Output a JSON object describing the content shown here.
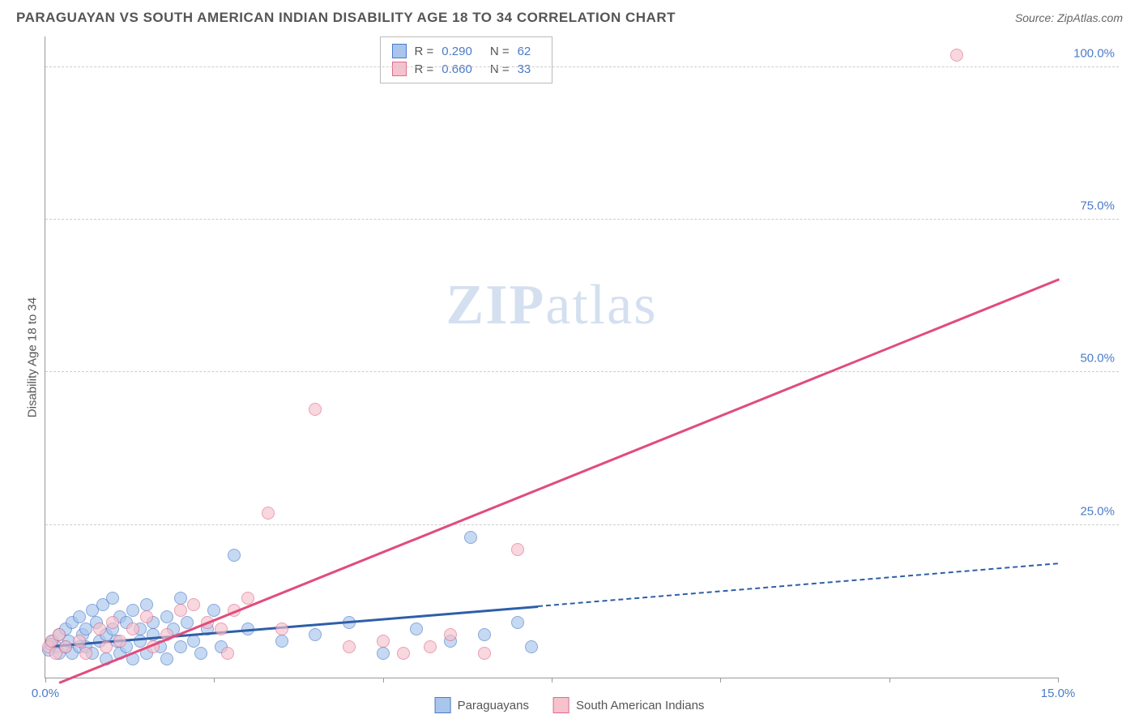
{
  "header": {
    "title": "PARAGUAYAN VS SOUTH AMERICAN INDIAN DISABILITY AGE 18 TO 34 CORRELATION CHART",
    "source_prefix": "Source: ",
    "source_name": "ZipAtlas.com"
  },
  "watermark": {
    "zip": "ZIP",
    "atlas": "atlas"
  },
  "chart": {
    "type": "scatter",
    "y_axis_label": "Disability Age 18 to 34",
    "xlim": [
      0,
      15
    ],
    "ylim": [
      0,
      105
    ],
    "x_ticks": [
      0,
      2.5,
      5,
      7.5,
      10,
      12.5,
      15
    ],
    "x_tick_labels": {
      "0": "0.0%",
      "15": "15.0%"
    },
    "y_ticks": [
      25,
      50,
      75,
      100
    ],
    "y_tick_labels": {
      "25": "25.0%",
      "50": "50.0%",
      "75": "75.0%",
      "100": "100.0%"
    },
    "grid_color": "#cccccc",
    "axis_color": "#999999",
    "tick_label_color": "#4a7bc8",
    "background_color": "#ffffff",
    "series": [
      {
        "name": "Paraguayans",
        "fill_color": "#a9c5ec",
        "border_color": "#4a7bc8",
        "trend_color": "#2e5fa8",
        "r_label": "R = ",
        "r_value": "0.290",
        "n_label": "N = ",
        "n_value": "62",
        "trend": {
          "x1": 0.1,
          "y1": 5.0,
          "x2": 7.3,
          "y2": 11.5,
          "dash_x2": 15.0,
          "dash_y2": 18.5
        },
        "points": [
          [
            0.1,
            6
          ],
          [
            0.15,
            5
          ],
          [
            0.2,
            7
          ],
          [
            0.2,
            4
          ],
          [
            0.3,
            8
          ],
          [
            0.3,
            5
          ],
          [
            0.35,
            6
          ],
          [
            0.4,
            9
          ],
          [
            0.4,
            4
          ],
          [
            0.5,
            10
          ],
          [
            0.5,
            5
          ],
          [
            0.55,
            7
          ],
          [
            0.6,
            8
          ],
          [
            0.6,
            5
          ],
          [
            0.7,
            11
          ],
          [
            0.7,
            4
          ],
          [
            0.75,
            9
          ],
          [
            0.8,
            6
          ],
          [
            0.85,
            12
          ],
          [
            0.9,
            7
          ],
          [
            0.9,
            3
          ],
          [
            1.0,
            8
          ],
          [
            1.0,
            13
          ],
          [
            1.05,
            6
          ],
          [
            1.1,
            10
          ],
          [
            1.1,
            4
          ],
          [
            1.2,
            9
          ],
          [
            1.2,
            5
          ],
          [
            1.3,
            11
          ],
          [
            1.3,
            3
          ],
          [
            1.4,
            8
          ],
          [
            1.4,
            6
          ],
          [
            1.5,
            12
          ],
          [
            1.5,
            4
          ],
          [
            1.6,
            9
          ],
          [
            1.6,
            7
          ],
          [
            1.7,
            5
          ],
          [
            1.8,
            10
          ],
          [
            1.8,
            3
          ],
          [
            1.9,
            8
          ],
          [
            2.0,
            13
          ],
          [
            2.0,
            5
          ],
          [
            2.1,
            9
          ],
          [
            2.2,
            6
          ],
          [
            2.3,
            4
          ],
          [
            2.4,
            8
          ],
          [
            2.5,
            11
          ],
          [
            2.6,
            5
          ],
          [
            2.8,
            20
          ],
          [
            3.0,
            8
          ],
          [
            3.5,
            6
          ],
          [
            4.0,
            7
          ],
          [
            4.5,
            9
          ],
          [
            5.0,
            4
          ],
          [
            5.5,
            8
          ],
          [
            6.0,
            6
          ],
          [
            6.3,
            23
          ],
          [
            6.5,
            7
          ],
          [
            7.0,
            9
          ],
          [
            7.2,
            5
          ],
          [
            0.05,
            4.5
          ],
          [
            0.08,
            5.5
          ]
        ]
      },
      {
        "name": "South American Indians",
        "fill_color": "#f5c2cd",
        "border_color": "#e06c8b",
        "trend_color": "#e04c7b",
        "r_label": "R = ",
        "r_value": "0.660",
        "n_label": "N = ",
        "n_value": "33",
        "trend": {
          "x1": 0.2,
          "y1": -1.0,
          "x2": 15.0,
          "y2": 65.0
        },
        "points": [
          [
            0.05,
            5
          ],
          [
            0.1,
            6
          ],
          [
            0.15,
            4
          ],
          [
            0.2,
            7
          ],
          [
            0.3,
            5
          ],
          [
            0.5,
            6
          ],
          [
            0.6,
            4
          ],
          [
            0.8,
            8
          ],
          [
            0.9,
            5
          ],
          [
            1.0,
            9
          ],
          [
            1.1,
            6
          ],
          [
            1.3,
            8
          ],
          [
            1.5,
            10
          ],
          [
            1.6,
            5
          ],
          [
            1.8,
            7
          ],
          [
            2.0,
            11
          ],
          [
            2.2,
            12
          ],
          [
            2.4,
            9
          ],
          [
            2.6,
            8
          ],
          [
            2.7,
            4
          ],
          [
            2.8,
            11
          ],
          [
            3.0,
            13
          ],
          [
            3.3,
            27
          ],
          [
            3.5,
            8
          ],
          [
            4.0,
            44
          ],
          [
            4.5,
            5
          ],
          [
            5.0,
            6
          ],
          [
            5.3,
            4
          ],
          [
            5.7,
            5
          ],
          [
            6.0,
            7
          ],
          [
            6.5,
            4
          ],
          [
            7.0,
            21
          ],
          [
            13.5,
            102
          ]
        ]
      }
    ]
  },
  "legend": {
    "series1_label": "Paraguayans",
    "series2_label": "South American Indians"
  }
}
